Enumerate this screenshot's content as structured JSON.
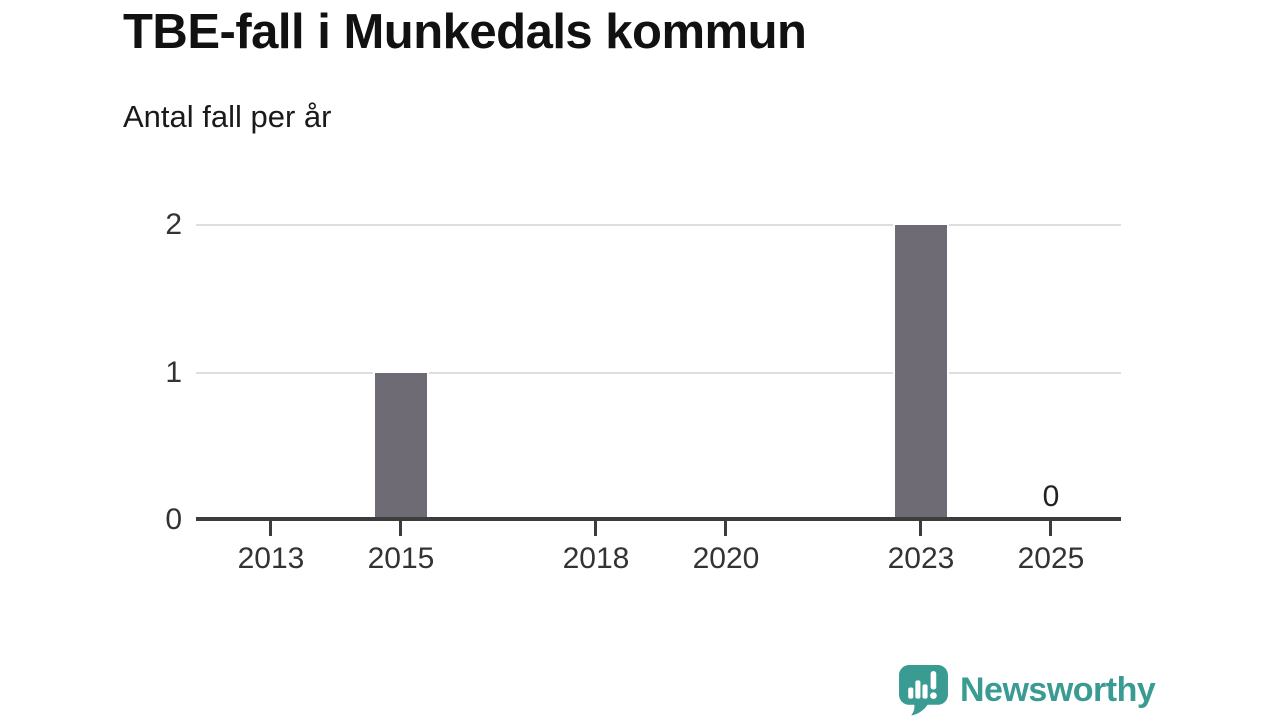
{
  "chart_data": {
    "type": "bar",
    "title": "TBE-fall i Munkedals kommun",
    "subtitle": "Antal fall per år",
    "xlabel": "",
    "ylabel": "",
    "x_ticks": [
      2013,
      2015,
      2018,
      2020,
      2023,
      2025
    ],
    "y_ticks": [
      0,
      1,
      2
    ],
    "ylim": [
      0,
      2
    ],
    "grid": "horizontal",
    "legend": "none",
    "bars": [
      {
        "x": 2015,
        "y": 1
      },
      {
        "x": 2023,
        "y": 2
      }
    ],
    "annotations": [
      {
        "x": 2025,
        "y": 0,
        "text": "0"
      }
    ]
  },
  "colors": {
    "background": "#ffffff",
    "bar": "#6e6b74",
    "bar_outline": "#ffffff",
    "gridline": "#dedede",
    "axis": "#3c3c3c",
    "tick_text": "#333333",
    "title_text": "#111111",
    "brand_teal": "#3a9b93"
  },
  "footer": {
    "brand": "Newsworthy",
    "logo_icon": "speech-bubble-bar-chart-exclamation"
  }
}
